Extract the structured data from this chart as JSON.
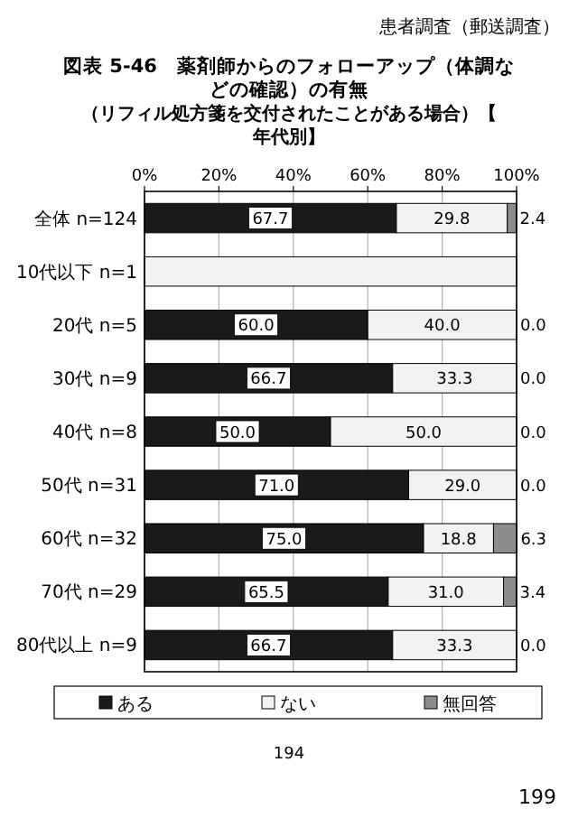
{
  "chart_data": {
    "type": "bar",
    "orientation": "horizontal",
    "stacked": true,
    "title": "図表 5-46　薬剤師からのフォローアップ（体調などの確認）の有無",
    "subtitle": "（リフィル処方箋を交付されたことがある場合）【年代別】",
    "categories": [
      "全体 n=124",
      "10代以下 n=1",
      "20代 n=5",
      "30代 n=9",
      "40代 n=8",
      "50代 n=31",
      "60代 n=32",
      "70代 n=29",
      "80代以上 n=9"
    ],
    "series": [
      {
        "name": "ある",
        "color": "#1a1a1a",
        "values": [
          67.7,
          0,
          60.0,
          66.7,
          50.0,
          71.0,
          75.0,
          65.5,
          66.7
        ],
        "value_labels": [
          "67.7",
          null,
          "60.0",
          "66.7",
          "50.0",
          "71.0",
          "75.0",
          "65.5",
          "66.7"
        ]
      },
      {
        "name": "ない",
        "color": "#f2f2f2",
        "values": [
          29.8,
          100,
          40.0,
          33.3,
          50.0,
          29.0,
          18.8,
          31.0,
          33.3
        ],
        "value_labels": [
          "29.8",
          null,
          "40.0",
          "33.3",
          "50.0",
          "29.0",
          "18.8",
          "31.0",
          "33.3"
        ]
      },
      {
        "name": "無回答",
        "color": "#8c8c8c",
        "values": [
          2.4,
          0,
          0.0,
          0.0,
          0.0,
          0.0,
          6.3,
          3.4,
          0.0
        ],
        "value_labels": [
          "2.4",
          null,
          "0.0",
          "0.0",
          "0.0",
          "0.0",
          "6.3",
          "3.4",
          "0.0"
        ]
      }
    ],
    "xlim": [
      0,
      100
    ],
    "xticks": [
      {
        "value": 0,
        "label": "0%"
      },
      {
        "value": 20,
        "label": "20%"
      },
      {
        "value": 40,
        "label": "40%"
      },
      {
        "value": 60,
        "label": "60%"
      },
      {
        "value": 80,
        "label": "80%"
      },
      {
        "value": 100,
        "label": "100%"
      }
    ],
    "grid": "x",
    "legend": "bottom",
    "annotations": [
      "患者調査（郵送調査）",
      "194",
      "199"
    ]
  }
}
